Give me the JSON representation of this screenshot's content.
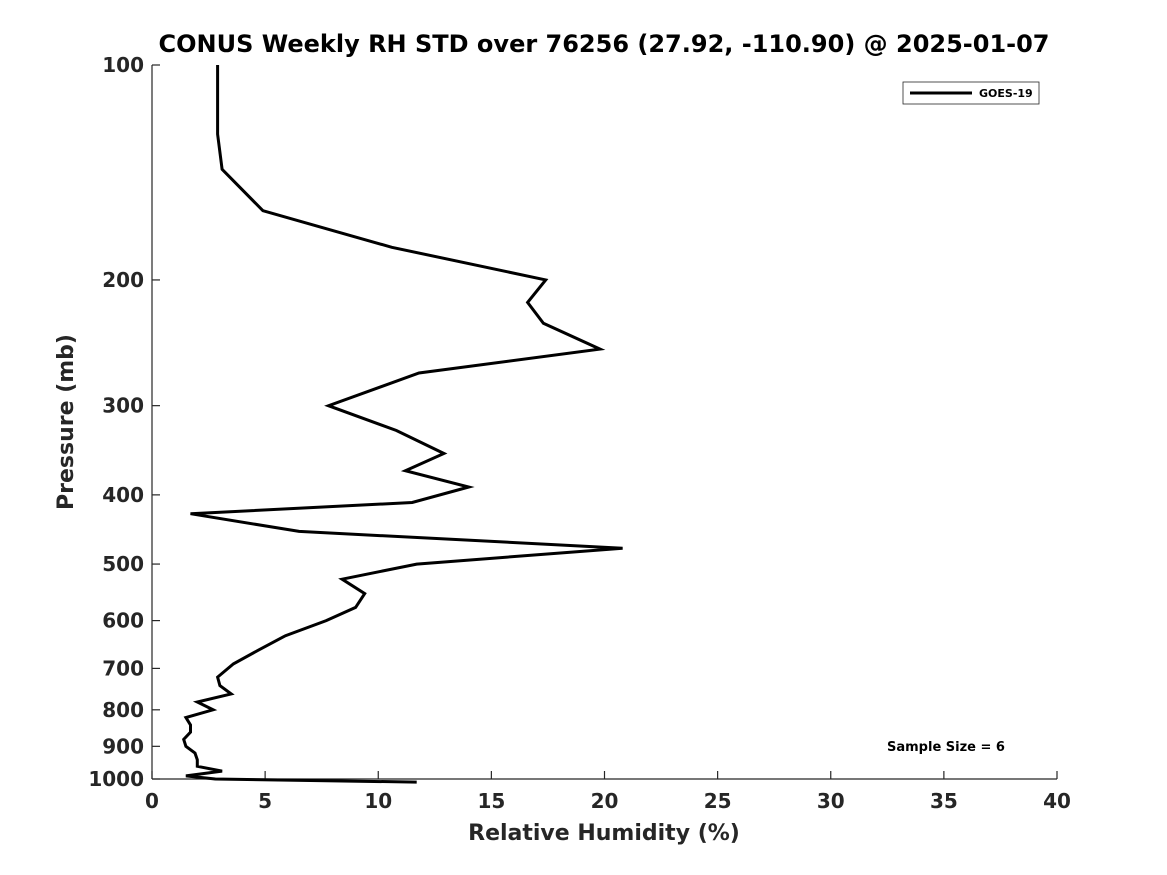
{
  "chart_data": {
    "type": "line",
    "title": "CONUS Weekly RH STD over 76256 (27.92, -110.90) @ 2025-01-07",
    "xlabel": "Relative Humidity (%)",
    "ylabel": "Pressure (mb)",
    "xlim": [
      0,
      40
    ],
    "ylim": [
      100,
      1000
    ],
    "y_scale": "log",
    "y_reversed": true,
    "grid": false,
    "xticks": [
      "0",
      "5",
      "10",
      "15",
      "20",
      "25",
      "30",
      "35",
      "40"
    ],
    "yticks": [
      "100",
      "200",
      "300",
      "400",
      "500",
      "600",
      "700",
      "800",
      "900",
      "1000"
    ],
    "legend": {
      "placement": "top-right",
      "entries": [
        "GOES-19"
      ]
    },
    "annotation": "Sample Size = 6",
    "series": [
      {
        "name": "GOES-19",
        "color": "#000000",
        "x": [
          2.9,
          2.9,
          2.9,
          3.1,
          4.9,
          10.6,
          17.4,
          16.6,
          17.3,
          19.8,
          11.8,
          7.8,
          10.8,
          12.9,
          11.2,
          14.0,
          11.5,
          1.7,
          6.5,
          20.8,
          11.7,
          8.4,
          9.4,
          9.0,
          7.7,
          5.9,
          4.7,
          3.6,
          2.9,
          3.0,
          3.5,
          2.0,
          2.7,
          1.5,
          1.7,
          1.7,
          1.4,
          1.5,
          1.9,
          2.0,
          2.0,
          3.1,
          1.5,
          2.8,
          11.7
        ],
        "y": [
          100,
          115,
          125,
          140,
          160,
          180,
          200,
          215,
          230,
          250,
          270,
          300,
          325,
          350,
          370,
          390,
          410,
          425,
          450,
          475,
          500,
          525,
          550,
          575,
          600,
          630,
          660,
          690,
          720,
          740,
          760,
          780,
          800,
          820,
          840,
          860,
          880,
          900,
          920,
          940,
          960,
          975,
          990,
          1000,
          1010
        ]
      }
    ]
  }
}
